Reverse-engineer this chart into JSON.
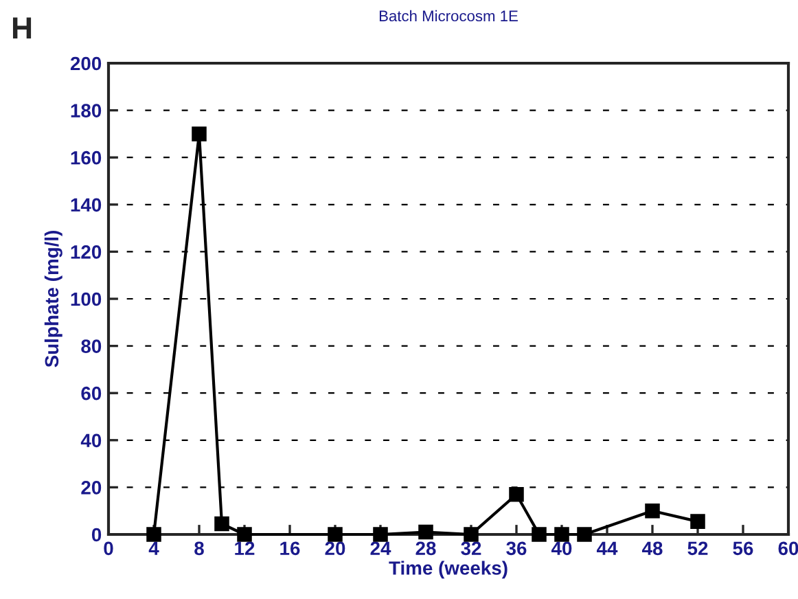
{
  "chart_data": {
    "type": "line",
    "title": "Batch Microcosm 1E",
    "xlabel": "Time (weeks)",
    "ylabel": "Sulphate (mg/l)",
    "annotations": [
      "H"
    ],
    "x": [
      4,
      8,
      10,
      12,
      20,
      24,
      28,
      32,
      36,
      38,
      40,
      42,
      48,
      52
    ],
    "series": [
      {
        "color": "#000000",
        "values": [
          0,
          170,
          4.5,
          0,
          0,
          0,
          1,
          0,
          17,
          0,
          0,
          0,
          10,
          5.5
        ]
      }
    ],
    "xlim": [
      0,
      60
    ],
    "xticks": [
      0,
      4,
      8,
      12,
      16,
      20,
      24,
      28,
      32,
      36,
      40,
      44,
      48,
      52,
      56,
      60
    ],
    "ylim": [
      0,
      200
    ],
    "yticks": [
      0,
      20,
      40,
      60,
      80,
      100,
      120,
      140,
      160,
      180,
      200
    ],
    "grid": "y",
    "marker": "square",
    "line_style": "solid"
  }
}
